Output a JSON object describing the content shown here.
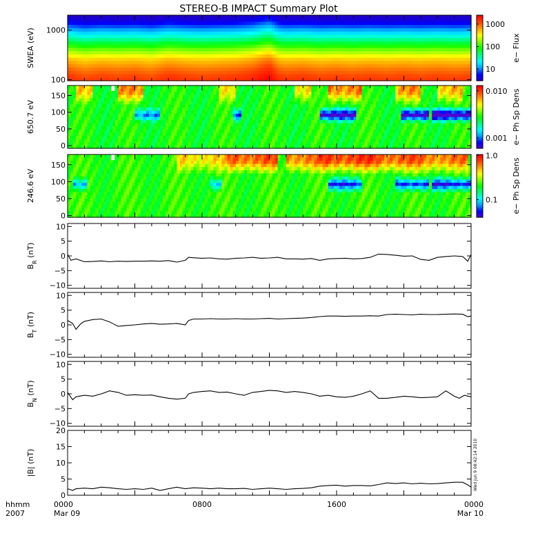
{
  "title": "STEREO-B IMPACT Summary Plot",
  "time_axis": {
    "row_label_1": "hhmm",
    "row_label_2": "2007",
    "ticks": [
      {
        "hour": 0,
        "hhmm": "0000",
        "date": "Mar 09"
      },
      {
        "hour": 8,
        "hhmm": "0800",
        "date": ""
      },
      {
        "hour": 16,
        "hhmm": "1600",
        "date": ""
      },
      {
        "hour": 24,
        "hhmm": "0000",
        "date": "Mar 10"
      }
    ]
  },
  "timestamp": "Wed Jun  9 08:42:14 2010",
  "colors": {
    "frame": "#000000",
    "trace": "#000000",
    "gap": "#ffffff"
  },
  "chart_data": [
    {
      "type": "heatmap",
      "id": "swea",
      "ylabel": "SWEA (eV)",
      "y_scale": "log",
      "ylim": [
        95,
        2000
      ],
      "yticks": [
        {
          "v": 100,
          "label": "100"
        },
        {
          "v": 1000,
          "label": "1000"
        }
      ],
      "colorbar_label": "e− Flux",
      "colorbar_scale": "log",
      "colorbar_range": [
        3,
        2500
      ],
      "colorbar_ticks": [
        {
          "v": 10,
          "label": "10"
        },
        {
          "v": 100,
          "label": "100"
        },
        {
          "v": 1000,
          "label": "1000"
        }
      ],
      "colormap": [
        "#1e00c8",
        "#0000ff",
        "#00a0ff",
        "#00ffff",
        "#00ff80",
        "#00ff00",
        "#80ff00",
        "#ffff00",
        "#ffa000",
        "#ff4000",
        "#ff0000"
      ],
      "energy_levels": [
        110,
        160,
        250,
        400,
        650,
        1000,
        1500,
        1900
      ],
      "profile_values": [
        1500,
        1000,
        550,
        180,
        45,
        14,
        5,
        3
      ],
      "time_modulation": [
        [
          0,
          1.0
        ],
        [
          1,
          0.8
        ],
        [
          2,
          0.9
        ],
        [
          3,
          0.85
        ],
        [
          4,
          0.9
        ],
        [
          5,
          0.8
        ],
        [
          6,
          1.0
        ],
        [
          7,
          0.9
        ],
        [
          8,
          0.85
        ],
        [
          9,
          0.9
        ],
        [
          10,
          0.95
        ],
        [
          11,
          1.1
        ],
        [
          12,
          1.6
        ],
        [
          12.5,
          1.0
        ],
        [
          13,
          0.9
        ],
        [
          14,
          0.95
        ],
        [
          15,
          0.85
        ],
        [
          16,
          0.9
        ],
        [
          17,
          0.85
        ],
        [
          18,
          0.9
        ],
        [
          19,
          0.85
        ],
        [
          20,
          0.9
        ],
        [
          21,
          0.85
        ],
        [
          22,
          0.9
        ],
        [
          23,
          0.85
        ],
        [
          24,
          0.9
        ]
      ]
    },
    {
      "type": "heatmap",
      "id": "pad650",
      "ylabel": "650.7 eV",
      "y_scale": "linear",
      "ylim": [
        -8,
        180
      ],
      "yticks": [
        {
          "v": 0,
          "label": "0"
        },
        {
          "v": 50,
          "label": "50"
        },
        {
          "v": 100,
          "label": "100"
        },
        {
          "v": 150,
          "label": "150"
        }
      ],
      "colorbar_label": "e− Ph Sp Dens",
      "colorbar_scale": "log",
      "colorbar_range": [
        0.0006,
        0.013
      ],
      "colorbar_ticks": [
        {
          "v": 0.001,
          "label": "0.001"
        },
        {
          "v": 0.01,
          "label": "0.010"
        }
      ],
      "colormap": [
        "#5000d0",
        "#0000ff",
        "#00a0ff",
        "#00ffff",
        "#00ff80",
        "#00ff00",
        "#80ff00",
        "#ffff00",
        "#ffa000",
        "#ff4000",
        "#ff0000"
      ],
      "base_value": 0.0028,
      "beam_segments": [
        [
          0.5,
          1.5,
          0.3
        ],
        [
          3.0,
          4.5,
          0.4
        ],
        [
          9.0,
          10.0,
          0.25
        ],
        [
          13.5,
          14.5,
          0.3
        ],
        [
          15.5,
          17.5,
          0.45
        ],
        [
          19.5,
          21.0,
          0.4
        ],
        [
          22.0,
          23.5,
          0.35
        ]
      ],
      "dip_segments": [
        [
          4.0,
          5.5,
          0.4
        ],
        [
          9.8,
          10.3,
          0.5
        ],
        [
          15.0,
          17.2,
          0.7
        ],
        [
          19.8,
          21.5,
          0.75
        ],
        [
          21.6,
          24.0,
          0.8
        ]
      ],
      "gaps": [
        [
          2.6,
          2.8
        ]
      ]
    },
    {
      "type": "heatmap",
      "id": "pad246",
      "ylabel": "246.6 eV",
      "y_scale": "linear",
      "ylim": [
        -5,
        180
      ],
      "yticks": [
        {
          "v": 0,
          "label": "0"
        },
        {
          "v": 50,
          "label": "50"
        },
        {
          "v": 100,
          "label": "100"
        },
        {
          "v": 150,
          "label": "150"
        }
      ],
      "colorbar_label": "e− Ph Sp Dens",
      "colorbar_scale": "log",
      "colorbar_range": [
        0.04,
        1.05
      ],
      "colorbar_ticks": [
        {
          "v": 0.1,
          "label": "0.1"
        },
        {
          "v": 1,
          "label": "1.0"
        }
      ],
      "colormap": [
        "#5000d0",
        "#0000ff",
        "#00a0ff",
        "#00ffff",
        "#00ff80",
        "#00ff00",
        "#80ff00",
        "#ffff00",
        "#ffa000",
        "#ff4000",
        "#ff0000"
      ],
      "base_value": 0.22,
      "beam_segments": [
        [
          6.5,
          9.5,
          0.3
        ],
        [
          9.5,
          12.5,
          0.5
        ],
        [
          13.0,
          15.0,
          0.45
        ],
        [
          15.0,
          18.5,
          0.55
        ],
        [
          18.5,
          21.0,
          0.5
        ],
        [
          21.0,
          23.8,
          0.45
        ]
      ],
      "dip_segments": [
        [
          0.4,
          1.2,
          0.45
        ],
        [
          8.5,
          9.2,
          0.4
        ],
        [
          15.5,
          17.5,
          0.6
        ],
        [
          19.5,
          21.5,
          0.6
        ],
        [
          21.6,
          24.0,
          0.65
        ]
      ],
      "gaps": [
        [
          2.6,
          2.8
        ]
      ]
    },
    {
      "type": "line",
      "id": "br",
      "ylabel": "B",
      "ylabel_sub": "R",
      "ylabel_unit": "(nT)",
      "ylim": [
        -11,
        11
      ],
      "yticks": [
        {
          "v": -10,
          "label": "−10"
        },
        {
          "v": -5,
          "label": "−5"
        },
        {
          "v": 0,
          "label": "0"
        },
        {
          "v": 5,
          "label": "5"
        },
        {
          "v": 10,
          "label": "10"
        }
      ],
      "x": [
        0.0,
        0.2,
        0.5,
        1.0,
        1.5,
        2.0,
        2.5,
        3.0,
        3.5,
        4.0,
        4.5,
        5.0,
        5.5,
        6.0,
        6.5,
        7.0,
        7.2,
        7.4,
        8.0,
        8.5,
        9.0,
        9.5,
        10.0,
        10.5,
        11.0,
        11.5,
        12.0,
        12.5,
        13.0,
        13.5,
        14.0,
        14.5,
        15.0,
        15.5,
        16.0,
        16.5,
        17.0,
        17.5,
        18.0,
        18.5,
        19.0,
        19.5,
        20.0,
        20.5,
        21.0,
        21.5,
        22.0,
        22.5,
        23.0,
        23.5,
        23.8,
        24.0
      ],
      "y": [
        0.5,
        -1.5,
        -1.0,
        -2.0,
        -1.9,
        -1.7,
        -2.0,
        -1.8,
        -1.9,
        -1.8,
        -1.8,
        -1.7,
        -1.8,
        -1.6,
        -2.1,
        -1.5,
        -0.5,
        -0.6,
        -0.8,
        -0.7,
        -1.0,
        -1.1,
        -0.8,
        -0.7,
        -0.5,
        -0.8,
        -0.7,
        -0.5,
        -1.0,
        -1.0,
        -1.1,
        -0.9,
        -1.5,
        -1.0,
        -0.9,
        -0.8,
        -1.0,
        -0.9,
        -0.5,
        0.6,
        0.5,
        0.2,
        -0.1,
        0.0,
        -1.2,
        -1.5,
        -0.5,
        -0.2,
        0.0,
        -0.2,
        -1.8,
        0.5
      ]
    },
    {
      "type": "line",
      "id": "bt",
      "ylabel": "B",
      "ylabel_sub": "T",
      "ylabel_unit": "(nT)",
      "ylim": [
        -11,
        11
      ],
      "yticks": [
        {
          "v": -10,
          "label": "−10"
        },
        {
          "v": -5,
          "label": "−5"
        },
        {
          "v": 0,
          "label": "0"
        },
        {
          "v": 5,
          "label": "5"
        },
        {
          "v": 10,
          "label": "10"
        }
      ],
      "x": [
        0.0,
        0.3,
        0.5,
        0.8,
        1.0,
        1.5,
        2.0,
        2.5,
        3.0,
        3.5,
        4.0,
        4.5,
        5.0,
        5.5,
        6.0,
        6.5,
        7.0,
        7.2,
        7.5,
        8.0,
        8.5,
        9.0,
        9.5,
        10.0,
        10.5,
        11.0,
        11.5,
        12.0,
        12.5,
        13.0,
        13.5,
        14.0,
        14.5,
        15.0,
        15.5,
        16.0,
        16.5,
        17.0,
        17.5,
        18.0,
        18.5,
        19.0,
        19.5,
        20.0,
        20.5,
        21.0,
        21.5,
        22.0,
        22.5,
        23.0,
        23.5,
        23.8,
        24.0
      ],
      "y": [
        1.5,
        0.5,
        -1.5,
        0.5,
        1.2,
        1.8,
        2.0,
        1.0,
        -0.5,
        -0.2,
        0.0,
        0.3,
        0.5,
        0.2,
        0.3,
        0.5,
        0.0,
        1.5,
        2.0,
        2.0,
        2.1,
        2.0,
        2.0,
        2.1,
        2.0,
        2.0,
        2.1,
        2.2,
        2.0,
        2.1,
        2.2,
        2.3,
        2.5,
        2.8,
        3.0,
        3.0,
        2.9,
        3.0,
        3.0,
        3.1,
        3.0,
        3.5,
        3.6,
        3.5,
        3.4,
        3.6,
        3.5,
        3.5,
        3.6,
        3.7,
        3.6,
        2.8,
        3.0
      ]
    },
    {
      "type": "line",
      "id": "bn",
      "ylabel": "B",
      "ylabel_sub": "N",
      "ylabel_unit": "(nT)",
      "ylim": [
        -11,
        11
      ],
      "yticks": [
        {
          "v": -10,
          "label": "−10"
        },
        {
          "v": -5,
          "label": "−5"
        },
        {
          "v": 0,
          "label": "0"
        },
        {
          "v": 5,
          "label": "5"
        },
        {
          "v": 10,
          "label": "10"
        }
      ],
      "x": [
        0.0,
        0.3,
        0.5,
        1.0,
        1.5,
        2.0,
        2.5,
        3.0,
        3.5,
        4.0,
        4.5,
        5.0,
        5.5,
        6.0,
        6.5,
        7.0,
        7.2,
        7.5,
        8.0,
        8.5,
        9.0,
        9.5,
        10.0,
        10.5,
        11.0,
        11.5,
        12.0,
        12.5,
        13.0,
        13.5,
        14.0,
        14.5,
        15.0,
        15.5,
        16.0,
        16.5,
        17.0,
        17.5,
        18.0,
        18.5,
        19.0,
        19.5,
        20.0,
        20.5,
        21.0,
        21.5,
        22.0,
        22.5,
        23.0,
        23.3,
        23.6,
        24.0
      ],
      "y": [
        0.5,
        -2.0,
        -1.0,
        -0.5,
        -0.8,
        0.0,
        1.0,
        0.5,
        -0.5,
        -0.3,
        -0.5,
        -0.4,
        -1.0,
        -1.5,
        -1.8,
        -1.5,
        0.0,
        0.5,
        0.8,
        1.0,
        0.5,
        0.6,
        0.0,
        -0.5,
        0.5,
        0.8,
        1.2,
        1.0,
        0.5,
        0.8,
        0.5,
        0.0,
        -0.8,
        -0.5,
        -1.0,
        -1.2,
        -0.8,
        0.0,
        1.0,
        -1.5,
        -1.5,
        -1.2,
        -0.8,
        -1.0,
        -1.3,
        -1.2,
        -1.0,
        1.0,
        -0.8,
        -1.5,
        -0.5,
        -1.0
      ]
    },
    {
      "type": "line",
      "id": "bmag",
      "ylabel": "|B| (nT)",
      "ylim": [
        0,
        20
      ],
      "yticks": [
        {
          "v": 0,
          "label": "0"
        },
        {
          "v": 5,
          "label": "5"
        },
        {
          "v": 10,
          "label": "10"
        },
        {
          "v": 15,
          "label": "15"
        },
        {
          "v": 20,
          "label": "20"
        }
      ],
      "x": [
        0.0,
        0.3,
        0.5,
        1.0,
        1.5,
        2.0,
        2.5,
        3.0,
        3.5,
        4.0,
        4.5,
        5.0,
        5.5,
        6.0,
        6.5,
        7.0,
        7.5,
        8.0,
        8.5,
        9.0,
        9.5,
        10.0,
        10.5,
        11.0,
        11.5,
        12.0,
        12.5,
        13.0,
        13.5,
        14.0,
        14.5,
        15.0,
        15.5,
        16.0,
        16.5,
        17.0,
        17.5,
        18.0,
        18.5,
        19.0,
        19.5,
        20.0,
        20.5,
        21.0,
        21.5,
        22.0,
        22.5,
        23.0,
        23.5,
        23.8,
        24.0
      ],
      "y": [
        2.0,
        1.5,
        2.0,
        2.2,
        2.0,
        2.5,
        2.3,
        2.0,
        1.8,
        2.0,
        1.8,
        2.2,
        1.5,
        2.0,
        2.5,
        2.0,
        2.3,
        2.2,
        2.0,
        2.2,
        2.0,
        2.0,
        2.1,
        1.8,
        2.0,
        2.2,
        2.0,
        1.8,
        2.0,
        2.1,
        2.3,
        2.8,
        3.0,
        3.1,
        2.8,
        3.0,
        3.0,
        2.9,
        3.3,
        3.8,
        3.6,
        3.8,
        3.5,
        3.7,
        3.5,
        3.6,
        3.8,
        4.0,
        4.0,
        3.2,
        2.5
      ]
    }
  ]
}
